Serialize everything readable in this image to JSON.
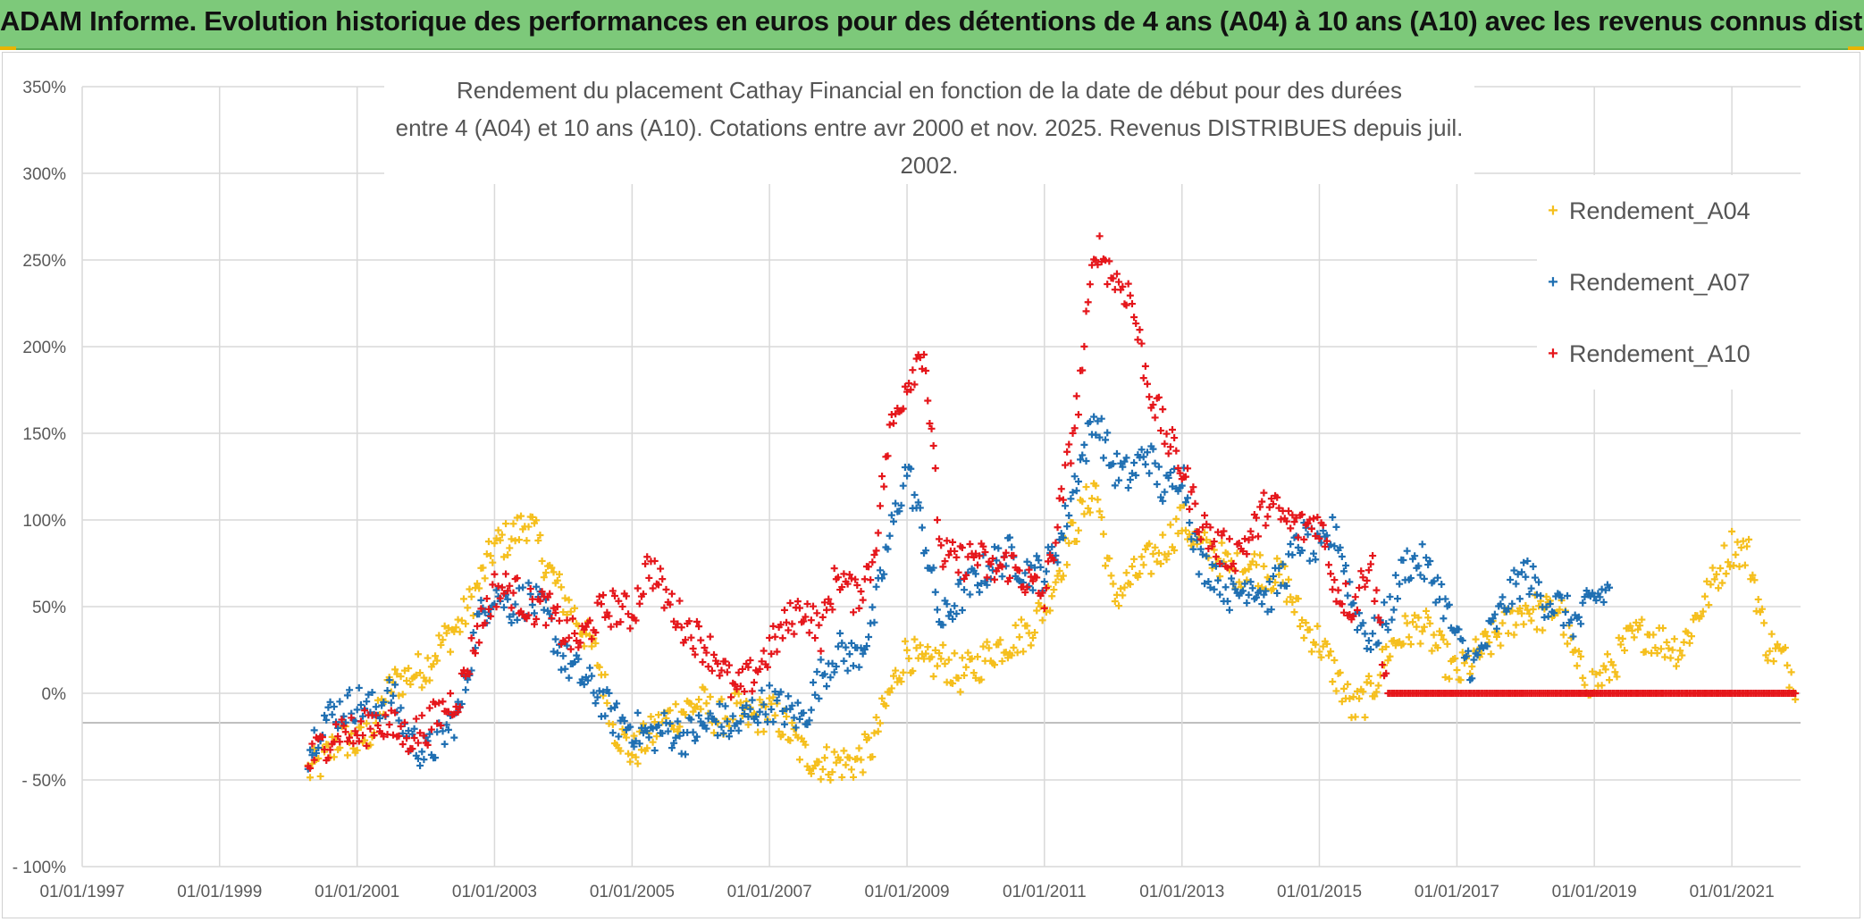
{
  "banner": {
    "title": "ADAM Informe. Evolution historique des performances en euros pour des détentions de 4 ans (A04) à 10 ans (A10) avec les revenus connus distribués"
  },
  "chart_data": {
    "type": "scatter",
    "title_line1": "Rendement du placement Cathay Financial  en fonction de la date de début pour des durées",
    "title_line2": "entre 4 (A04) et 10 ans (A10). Cotations entre avr 2000 et nov. 2025. Revenus DISTRIBUES depuis juil. 2002.",
    "ylim": [
      -100,
      350
    ],
    "xlim": [
      "1997-01-01",
      "2022-01-01"
    ],
    "y_ticks": [
      {
        "value": 350,
        "label": "350%"
      },
      {
        "value": 300,
        "label": "300%"
      },
      {
        "value": 250,
        "label": "250%"
      },
      {
        "value": 200,
        "label": "200%"
      },
      {
        "value": 150,
        "label": "150%"
      },
      {
        "value": 100,
        "label": "100%"
      },
      {
        "value": 50,
        "label": "50%"
      },
      {
        "value": 0,
        "label": "0%"
      },
      {
        "value": -50,
        "label": "- 50%"
      },
      {
        "value": -100,
        "label": "- 100%"
      }
    ],
    "x_ticks": [
      "01/01/1997",
      "01/01/1999",
      "01/01/2001",
      "01/01/2003",
      "01/01/2005",
      "01/01/2007",
      "01/01/2009",
      "01/01/2011",
      "01/01/2013",
      "01/01/2015",
      "01/01/2017",
      "01/01/2019",
      "01/01/2021"
    ],
    "grid": true,
    "legend_position": "top-right",
    "series": [
      {
        "name": "Rendement_A04",
        "color": "#f5bf1d",
        "points": [
          [
            "2000-04-15",
            -45
          ],
          [
            "2000-07-01",
            -40
          ],
          [
            "2000-10-01",
            -25
          ],
          [
            "2001-01-01",
            -30
          ],
          [
            "2001-04-01",
            -20
          ],
          [
            "2001-07-01",
            5
          ],
          [
            "2001-10-01",
            10
          ],
          [
            "2002-01-01",
            15
          ],
          [
            "2002-04-01",
            30
          ],
          [
            "2002-07-01",
            40
          ],
          [
            "2002-10-01",
            60
          ],
          [
            "2003-01-01",
            85
          ],
          [
            "2003-04-01",
            90
          ],
          [
            "2003-07-01",
            100
          ],
          [
            "2003-10-01",
            75
          ],
          [
            "2004-01-01",
            55
          ],
          [
            "2004-04-01",
            40
          ],
          [
            "2004-07-01",
            20
          ],
          [
            "2004-10-01",
            -20
          ],
          [
            "2005-01-01",
            -35
          ],
          [
            "2005-04-01",
            -25
          ],
          [
            "2005-07-01",
            -15
          ],
          [
            "2005-10-01",
            -10
          ],
          [
            "2006-01-01",
            -5
          ],
          [
            "2006-04-01",
            -15
          ],
          [
            "2006-07-01",
            -10
          ],
          [
            "2006-10-01",
            -15
          ],
          [
            "2007-01-01",
            -10
          ],
          [
            "2007-04-01",
            -20
          ],
          [
            "2007-07-01",
            -35
          ],
          [
            "2007-10-01",
            -40
          ],
          [
            "2008-01-01",
            -40
          ],
          [
            "2008-04-01",
            -40
          ],
          [
            "2008-07-01",
            -30
          ],
          [
            "2008-10-01",
            0
          ],
          [
            "2009-01-01",
            25
          ],
          [
            "2009-04-01",
            15
          ],
          [
            "2009-07-01",
            20
          ],
          [
            "2009-10-01",
            10
          ],
          [
            "2010-01-01",
            15
          ],
          [
            "2010-04-01",
            25
          ],
          [
            "2010-07-01",
            30
          ],
          [
            "2010-10-01",
            35
          ],
          [
            "2011-01-01",
            50
          ],
          [
            "2011-04-01",
            75
          ],
          [
            "2011-07-01",
            100
          ],
          [
            "2011-10-01",
            120
          ],
          [
            "2012-01-01",
            55
          ],
          [
            "2012-04-01",
            65
          ],
          [
            "2012-07-01",
            75
          ],
          [
            "2012-10-01",
            85
          ],
          [
            "2013-01-01",
            100
          ],
          [
            "2013-04-01",
            85
          ],
          [
            "2013-07-01",
            80
          ],
          [
            "2013-10-01",
            70
          ],
          [
            "2014-01-01",
            75
          ],
          [
            "2014-04-01",
            70
          ],
          [
            "2014-07-01",
            65
          ],
          [
            "2014-10-01",
            40
          ],
          [
            "2015-01-01",
            30
          ],
          [
            "2015-04-01",
            10
          ],
          [
            "2015-07-01",
            -10
          ],
          [
            "2015-10-01",
            0
          ],
          [
            "2016-01-01",
            25
          ],
          [
            "2016-04-01",
            35
          ],
          [
            "2016-07-01",
            40
          ],
          [
            "2016-10-01",
            25
          ],
          [
            "2017-01-01",
            10
          ],
          [
            "2017-04-01",
            20
          ],
          [
            "2017-07-01",
            30
          ],
          [
            "2017-10-01",
            40
          ],
          [
            "2018-01-01",
            50
          ],
          [
            "2018-04-01",
            45
          ],
          [
            "2018-07-01",
            50
          ],
          [
            "2018-10-01",
            15
          ],
          [
            "2019-01-01",
            5
          ],
          [
            "2019-04-01",
            15
          ],
          [
            "2019-07-01",
            30
          ],
          [
            "2019-10-01",
            35
          ],
          [
            "2020-01-01",
            30
          ],
          [
            "2020-04-01",
            25
          ],
          [
            "2020-07-01",
            45
          ],
          [
            "2020-10-01",
            65
          ],
          [
            "2021-01-01",
            85
          ],
          [
            "2021-04-01",
            80
          ],
          [
            "2021-07-01",
            30
          ],
          [
            "2021-10-01",
            20
          ],
          [
            "2021-12-15",
            5
          ]
        ]
      },
      {
        "name": "Rendement_A07",
        "color": "#1f6fb2",
        "points": [
          [
            "2000-04-15",
            -35
          ],
          [
            "2000-07-01",
            -15
          ],
          [
            "2000-10-01",
            -10
          ],
          [
            "2001-01-01",
            -5
          ],
          [
            "2001-04-01",
            -10
          ],
          [
            "2001-07-01",
            0
          ],
          [
            "2001-10-01",
            -25
          ],
          [
            "2002-01-01",
            -35
          ],
          [
            "2002-04-01",
            -25
          ],
          [
            "2002-07-01",
            -10
          ],
          [
            "2002-10-01",
            40
          ],
          [
            "2003-01-01",
            60
          ],
          [
            "2003-04-01",
            50
          ],
          [
            "2003-07-01",
            55
          ],
          [
            "2003-10-01",
            45
          ],
          [
            "2004-01-01",
            20
          ],
          [
            "2004-04-01",
            10
          ],
          [
            "2004-07-01",
            0
          ],
          [
            "2004-10-01",
            -15
          ],
          [
            "2005-01-01",
            -20
          ],
          [
            "2005-04-01",
            -25
          ],
          [
            "2005-07-01",
            -20
          ],
          [
            "2005-10-01",
            -25
          ],
          [
            "2006-01-01",
            -20
          ],
          [
            "2006-04-01",
            -15
          ],
          [
            "2006-07-01",
            -20
          ],
          [
            "2006-10-01",
            -10
          ],
          [
            "2007-01-01",
            -5
          ],
          [
            "2007-04-01",
            -10
          ],
          [
            "2007-07-01",
            -15
          ],
          [
            "2007-10-01",
            10
          ],
          [
            "2008-01-01",
            25
          ],
          [
            "2008-04-01",
            20
          ],
          [
            "2008-07-01",
            40
          ],
          [
            "2008-10-01",
            90
          ],
          [
            "2009-01-01",
            130
          ],
          [
            "2009-04-01",
            90
          ],
          [
            "2009-07-01",
            40
          ],
          [
            "2009-10-01",
            55
          ],
          [
            "2010-01-01",
            65
          ],
          [
            "2010-04-01",
            75
          ],
          [
            "2010-07-01",
            80
          ],
          [
            "2010-10-01",
            70
          ],
          [
            "2011-01-01",
            70
          ],
          [
            "2011-04-01",
            90
          ],
          [
            "2011-07-01",
            130
          ],
          [
            "2011-10-01",
            160
          ],
          [
            "2012-01-01",
            130
          ],
          [
            "2012-04-01",
            125
          ],
          [
            "2012-07-01",
            140
          ],
          [
            "2012-10-01",
            115
          ],
          [
            "2013-01-01",
            130
          ],
          [
            "2013-04-01",
            75
          ],
          [
            "2013-07-01",
            70
          ],
          [
            "2013-10-01",
            55
          ],
          [
            "2014-01-01",
            65
          ],
          [
            "2014-04-01",
            55
          ],
          [
            "2014-07-01",
            70
          ],
          [
            "2014-10-01",
            90
          ],
          [
            "2015-01-01",
            80
          ],
          [
            "2015-04-01",
            95
          ],
          [
            "2015-07-01",
            50
          ],
          [
            "2015-10-01",
            30
          ],
          [
            "2016-01-01",
            45
          ],
          [
            "2016-04-01",
            75
          ],
          [
            "2016-07-01",
            75
          ],
          [
            "2016-10-01",
            60
          ],
          [
            "2017-01-01",
            30
          ],
          [
            "2017-04-01",
            15
          ],
          [
            "2017-07-01",
            35
          ],
          [
            "2017-10-01",
            55
          ],
          [
            "2018-01-01",
            70
          ],
          [
            "2018-04-01",
            55
          ],
          [
            "2018-07-01",
            50
          ],
          [
            "2018-10-01",
            40
          ],
          [
            "2019-01-01",
            55
          ],
          [
            "2019-04-01",
            60
          ]
        ]
      },
      {
        "name": "Rendement_A10",
        "color": "#e5161b",
        "points": [
          [
            "2000-04-15",
            -40
          ],
          [
            "2000-07-01",
            -30
          ],
          [
            "2000-10-01",
            -20
          ],
          [
            "2001-01-01",
            -25
          ],
          [
            "2001-04-01",
            -15
          ],
          [
            "2001-07-01",
            -20
          ],
          [
            "2001-10-01",
            -25
          ],
          [
            "2002-01-01",
            -20
          ],
          [
            "2002-04-01",
            -10
          ],
          [
            "2002-07-01",
            0
          ],
          [
            "2002-10-01",
            35
          ],
          [
            "2003-01-01",
            60
          ],
          [
            "2003-04-01",
            60
          ],
          [
            "2003-07-01",
            50
          ],
          [
            "2003-10-01",
            50
          ],
          [
            "2004-01-01",
            35
          ],
          [
            "2004-04-01",
            30
          ],
          [
            "2004-07-01",
            45
          ],
          [
            "2004-10-01",
            50
          ],
          [
            "2005-01-01",
            45
          ],
          [
            "2005-04-01",
            75
          ],
          [
            "2005-07-01",
            55
          ],
          [
            "2005-10-01",
            40
          ],
          [
            "2006-01-01",
            30
          ],
          [
            "2006-04-01",
            20
          ],
          [
            "2006-07-01",
            0
          ],
          [
            "2006-10-01",
            10
          ],
          [
            "2007-01-01",
            25
          ],
          [
            "2007-04-01",
            40
          ],
          [
            "2007-07-01",
            50
          ],
          [
            "2007-10-01",
            35
          ],
          [
            "2008-01-01",
            70
          ],
          [
            "2008-04-01",
            55
          ],
          [
            "2008-07-01",
            75
          ],
          [
            "2008-10-01",
            150
          ],
          [
            "2009-01-01",
            180
          ],
          [
            "2009-04-01",
            200
          ],
          [
            "2009-07-01",
            80
          ],
          [
            "2009-10-01",
            75
          ],
          [
            "2010-01-01",
            80
          ],
          [
            "2010-04-01",
            70
          ],
          [
            "2010-07-01",
            75
          ],
          [
            "2010-10-01",
            65
          ],
          [
            "2011-01-01",
            55
          ],
          [
            "2011-04-01",
            110
          ],
          [
            "2011-07-01",
            170
          ],
          [
            "2011-10-01",
            260
          ],
          [
            "2012-01-01",
            240
          ],
          [
            "2012-04-01",
            230
          ],
          [
            "2012-07-01",
            180
          ],
          [
            "2012-10-01",
            150
          ],
          [
            "2013-01-01",
            130
          ],
          [
            "2013-04-01",
            100
          ],
          [
            "2013-07-01",
            85
          ],
          [
            "2013-10-01",
            80
          ],
          [
            "2014-01-01",
            90
          ],
          [
            "2014-04-01",
            110
          ],
          [
            "2014-07-01",
            100
          ],
          [
            "2014-10-01",
            95
          ],
          [
            "2015-01-01",
            100
          ],
          [
            "2015-04-01",
            60
          ],
          [
            "2015-07-01",
            50
          ],
          [
            "2015-10-01",
            80
          ],
          [
            "2016-01-01",
            0
          ],
          [
            "2016-07-01",
            0
          ],
          [
            "2017-01-01",
            0
          ],
          [
            "2017-07-01",
            0
          ],
          [
            "2018-01-01",
            0
          ],
          [
            "2018-07-01",
            0
          ],
          [
            "2019-01-01",
            0
          ],
          [
            "2019-07-01",
            0
          ],
          [
            "2020-01-01",
            0
          ],
          [
            "2020-07-01",
            0
          ],
          [
            "2021-01-01",
            0
          ],
          [
            "2021-07-01",
            0
          ],
          [
            "2021-12-15",
            0
          ]
        ]
      }
    ]
  }
}
